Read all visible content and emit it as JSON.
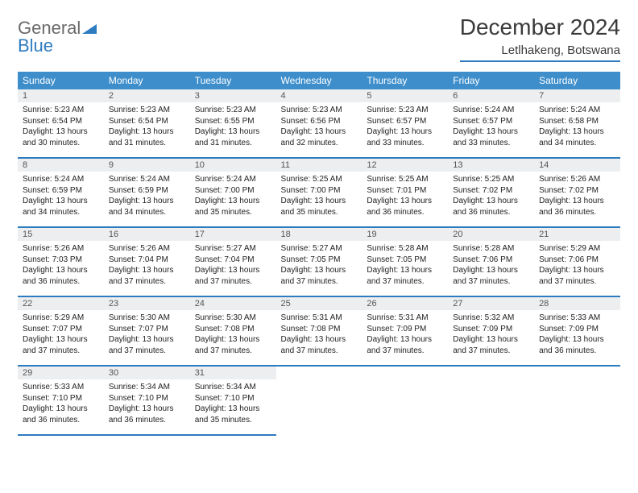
{
  "logo": {
    "word1": "General",
    "word2": "Blue",
    "word1_color": "#6a6a6a",
    "word2_color": "#2e7cc0",
    "icon_color": "#2e7cc0"
  },
  "title": "December 2024",
  "location": "Letlhakeng, Botswana",
  "table": {
    "header_bg": "#3d8ecb",
    "header_fg": "#ffffff",
    "accent": "#2e7cc0",
    "daynum_bg": "#eceef0",
    "columns": [
      "Sunday",
      "Monday",
      "Tuesday",
      "Wednesday",
      "Thursday",
      "Friday",
      "Saturday"
    ],
    "days": [
      {
        "n": "1",
        "sunrise": "5:23 AM",
        "sunset": "6:54 PM",
        "daylight": "13 hours and 30 minutes."
      },
      {
        "n": "2",
        "sunrise": "5:23 AM",
        "sunset": "6:54 PM",
        "daylight": "13 hours and 31 minutes."
      },
      {
        "n": "3",
        "sunrise": "5:23 AM",
        "sunset": "6:55 PM",
        "daylight": "13 hours and 31 minutes."
      },
      {
        "n": "4",
        "sunrise": "5:23 AM",
        "sunset": "6:56 PM",
        "daylight": "13 hours and 32 minutes."
      },
      {
        "n": "5",
        "sunrise": "5:23 AM",
        "sunset": "6:57 PM",
        "daylight": "13 hours and 33 minutes."
      },
      {
        "n": "6",
        "sunrise": "5:24 AM",
        "sunset": "6:57 PM",
        "daylight": "13 hours and 33 minutes."
      },
      {
        "n": "7",
        "sunrise": "5:24 AM",
        "sunset": "6:58 PM",
        "daylight": "13 hours and 34 minutes."
      },
      {
        "n": "8",
        "sunrise": "5:24 AM",
        "sunset": "6:59 PM",
        "daylight": "13 hours and 34 minutes."
      },
      {
        "n": "9",
        "sunrise": "5:24 AM",
        "sunset": "6:59 PM",
        "daylight": "13 hours and 34 minutes."
      },
      {
        "n": "10",
        "sunrise": "5:24 AM",
        "sunset": "7:00 PM",
        "daylight": "13 hours and 35 minutes."
      },
      {
        "n": "11",
        "sunrise": "5:25 AM",
        "sunset": "7:00 PM",
        "daylight": "13 hours and 35 minutes."
      },
      {
        "n": "12",
        "sunrise": "5:25 AM",
        "sunset": "7:01 PM",
        "daylight": "13 hours and 36 minutes."
      },
      {
        "n": "13",
        "sunrise": "5:25 AM",
        "sunset": "7:02 PM",
        "daylight": "13 hours and 36 minutes."
      },
      {
        "n": "14",
        "sunrise": "5:26 AM",
        "sunset": "7:02 PM",
        "daylight": "13 hours and 36 minutes."
      },
      {
        "n": "15",
        "sunrise": "5:26 AM",
        "sunset": "7:03 PM",
        "daylight": "13 hours and 36 minutes."
      },
      {
        "n": "16",
        "sunrise": "5:26 AM",
        "sunset": "7:04 PM",
        "daylight": "13 hours and 37 minutes."
      },
      {
        "n": "17",
        "sunrise": "5:27 AM",
        "sunset": "7:04 PM",
        "daylight": "13 hours and 37 minutes."
      },
      {
        "n": "18",
        "sunrise": "5:27 AM",
        "sunset": "7:05 PM",
        "daylight": "13 hours and 37 minutes."
      },
      {
        "n": "19",
        "sunrise": "5:28 AM",
        "sunset": "7:05 PM",
        "daylight": "13 hours and 37 minutes."
      },
      {
        "n": "20",
        "sunrise": "5:28 AM",
        "sunset": "7:06 PM",
        "daylight": "13 hours and 37 minutes."
      },
      {
        "n": "21",
        "sunrise": "5:29 AM",
        "sunset": "7:06 PM",
        "daylight": "13 hours and 37 minutes."
      },
      {
        "n": "22",
        "sunrise": "5:29 AM",
        "sunset": "7:07 PM",
        "daylight": "13 hours and 37 minutes."
      },
      {
        "n": "23",
        "sunrise": "5:30 AM",
        "sunset": "7:07 PM",
        "daylight": "13 hours and 37 minutes."
      },
      {
        "n": "24",
        "sunrise": "5:30 AM",
        "sunset": "7:08 PM",
        "daylight": "13 hours and 37 minutes."
      },
      {
        "n": "25",
        "sunrise": "5:31 AM",
        "sunset": "7:08 PM",
        "daylight": "13 hours and 37 minutes."
      },
      {
        "n": "26",
        "sunrise": "5:31 AM",
        "sunset": "7:09 PM",
        "daylight": "13 hours and 37 minutes."
      },
      {
        "n": "27",
        "sunrise": "5:32 AM",
        "sunset": "7:09 PM",
        "daylight": "13 hours and 37 minutes."
      },
      {
        "n": "28",
        "sunrise": "5:33 AM",
        "sunset": "7:09 PM",
        "daylight": "13 hours and 36 minutes."
      },
      {
        "n": "29",
        "sunrise": "5:33 AM",
        "sunset": "7:10 PM",
        "daylight": "13 hours and 36 minutes."
      },
      {
        "n": "30",
        "sunrise": "5:34 AM",
        "sunset": "7:10 PM",
        "daylight": "13 hours and 36 minutes."
      },
      {
        "n": "31",
        "sunrise": "5:34 AM",
        "sunset": "7:10 PM",
        "daylight": "13 hours and 35 minutes."
      }
    ],
    "labels": {
      "sunrise": "Sunrise:",
      "sunset": "Sunset:",
      "daylight": "Daylight:"
    }
  }
}
